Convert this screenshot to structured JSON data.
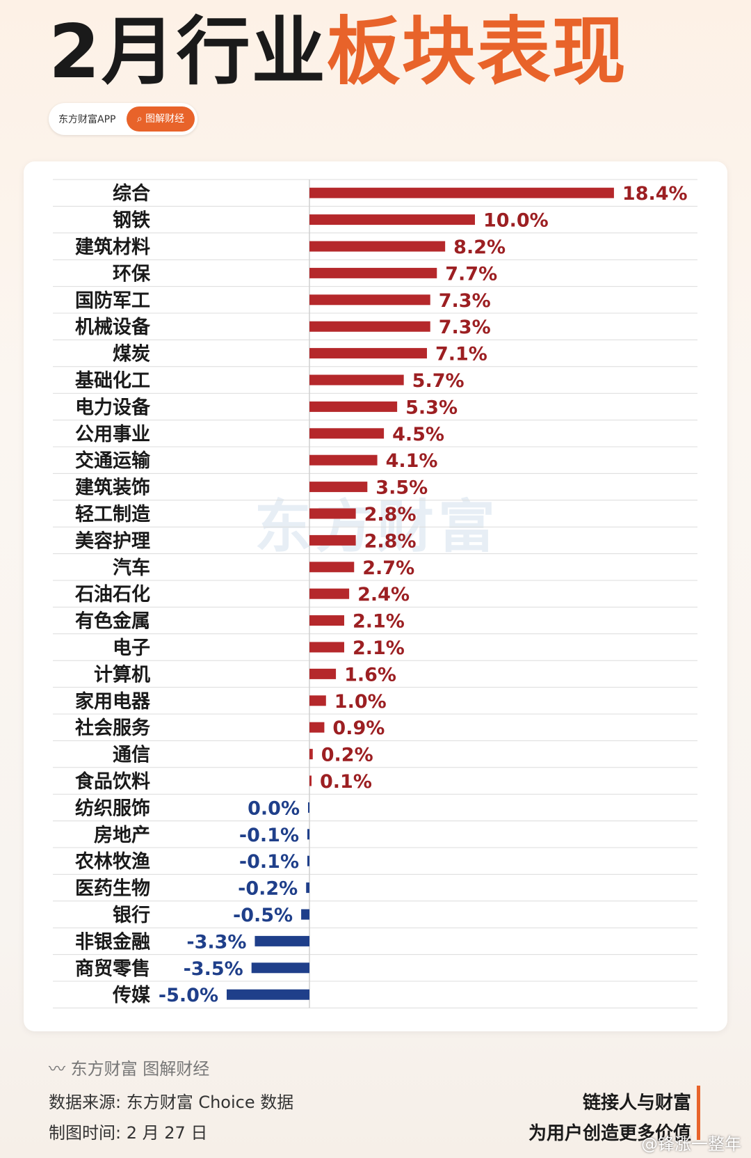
{
  "header": {
    "title_black": "2月行业",
    "title_orange": "板块表现"
  },
  "pill": {
    "app": "东方财富APP",
    "button": "图解财经"
  },
  "watermark": "东方财富",
  "chart_data": {
    "type": "bar",
    "orientation": "horizontal",
    "title": "2月行业板块表现",
    "unit": "%",
    "categories": [
      "综合",
      "钢铁",
      "建筑材料",
      "环保",
      "国防军工",
      "机械设备",
      "煤炭",
      "基础化工",
      "电力设备",
      "公用事业",
      "交通运输",
      "建筑装饰",
      "轻工制造",
      "美容护理",
      "汽车",
      "石油石化",
      "有色金属",
      "电子",
      "计算机",
      "家用电器",
      "社会服务",
      "通信",
      "食品饮料",
      "纺织服饰",
      "房地产",
      "农林牧渔",
      "医药生物",
      "银行",
      "非银金融",
      "商贸零售",
      "传媒"
    ],
    "values": [
      18.4,
      10.0,
      8.2,
      7.7,
      7.3,
      7.3,
      7.1,
      5.7,
      5.3,
      4.5,
      4.1,
      3.5,
      2.8,
      2.8,
      2.7,
      2.4,
      2.1,
      2.1,
      1.6,
      1.0,
      0.9,
      0.2,
      0.1,
      0.0,
      -0.1,
      -0.1,
      -0.2,
      -0.5,
      -3.3,
      -3.5,
      -5.0
    ],
    "labels": [
      "18.4%",
      "10.0%",
      "8.2%",
      "7.7%",
      "7.3%",
      "7.3%",
      "7.1%",
      "5.7%",
      "5.3%",
      "4.5%",
      "4.1%",
      "3.5%",
      "2.8%",
      "2.8%",
      "2.7%",
      "2.4%",
      "2.1%",
      "2.1%",
      "1.6%",
      "1.0%",
      "0.9%",
      "0.2%",
      "0.1%",
      "0.0%",
      "-0.1%",
      "-0.1%",
      "-0.2%",
      "-0.5%",
      "-3.3%",
      "-3.5%",
      "-5.0%"
    ],
    "colors": {
      "positive": "#b5282b",
      "negative": "#1f3f8a",
      "positive_label": "#9c1f22",
      "negative_label": "#1f3f8a"
    }
  },
  "footer": {
    "brand": "东方财富 图解财经",
    "source": "数据来源: 东方财富 Choice 数据",
    "date": "制图时间: 2 月 27 日",
    "slogan1": "链接人与财富",
    "slogan2": "为用户创造更多价值",
    "weibo": "@锋涨一整年"
  }
}
